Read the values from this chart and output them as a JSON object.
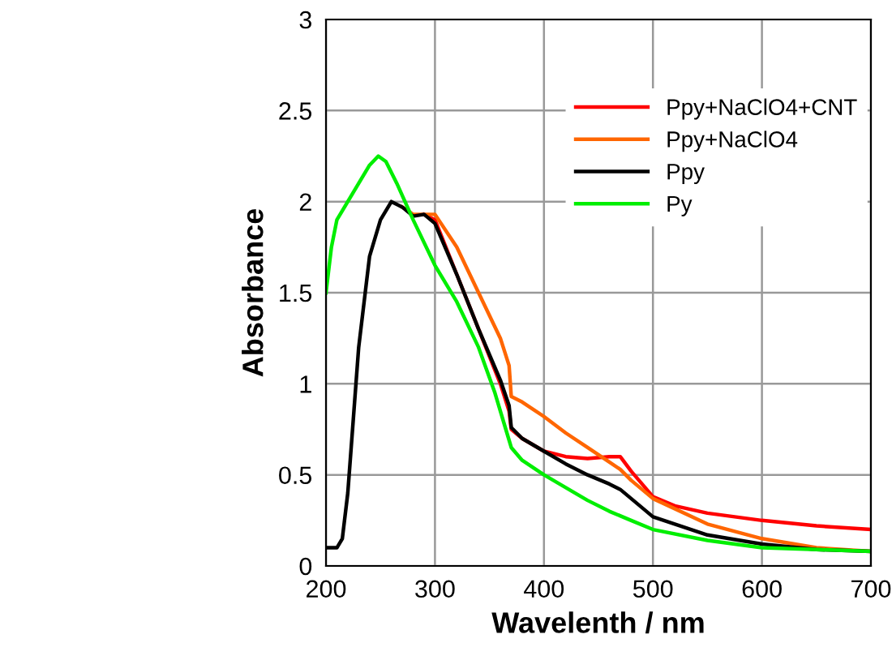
{
  "chart_data": {
    "type": "line",
    "xlabel": "Wavelenth / nm",
    "ylabel": "Absorbance",
    "xlim": [
      200,
      700
    ],
    "ylim": [
      0,
      3
    ],
    "xticks": [
      200,
      300,
      400,
      500,
      600,
      700
    ],
    "yticks": [
      0,
      0.5,
      1,
      1.5,
      2,
      2.5,
      3
    ],
    "grid": true,
    "legend": "top right",
    "series": [
      {
        "name": "Ppy+NaClO4+CNT",
        "color": "#ff0000",
        "x": [
          290,
          300,
          320,
          340,
          360,
          368,
          370,
          380,
          400,
          420,
          440,
          460,
          470,
          480,
          490,
          500,
          520,
          550,
          600,
          650,
          700
        ],
        "values": [
          1.93,
          1.9,
          1.6,
          1.3,
          1.0,
          0.85,
          0.75,
          0.7,
          0.63,
          0.6,
          0.59,
          0.6,
          0.6,
          0.52,
          0.45,
          0.38,
          0.33,
          0.29,
          0.25,
          0.22,
          0.2
        ]
      },
      {
        "name": "Ppy+NaClO4",
        "color": "#ff6600",
        "x": [
          270,
          280,
          300,
          320,
          340,
          360,
          368,
          370,
          380,
          400,
          420,
          440,
          460,
          470,
          480,
          500,
          550,
          600,
          650,
          700
        ],
        "values": [
          1.97,
          1.93,
          1.93,
          1.75,
          1.5,
          1.25,
          1.1,
          0.93,
          0.9,
          0.82,
          0.73,
          0.65,
          0.57,
          0.53,
          0.47,
          0.37,
          0.23,
          0.15,
          0.1,
          0.08
        ]
      },
      {
        "name": "Ppy",
        "color": "#000000",
        "x": [
          200,
          210,
          215,
          220,
          230,
          240,
          250,
          260,
          270,
          280,
          290,
          300,
          320,
          340,
          360,
          368,
          370,
          380,
          400,
          420,
          440,
          460,
          470,
          480,
          500,
          550,
          600,
          650,
          700
        ],
        "values": [
          0.1,
          0.1,
          0.15,
          0.4,
          1.2,
          1.7,
          1.9,
          2.0,
          1.97,
          1.92,
          1.93,
          1.88,
          1.6,
          1.3,
          1.02,
          0.88,
          0.76,
          0.7,
          0.63,
          0.56,
          0.5,
          0.45,
          0.42,
          0.37,
          0.27,
          0.17,
          0.12,
          0.09,
          0.08
        ]
      },
      {
        "name": "Py",
        "color": "#00ee00",
        "x": [
          200,
          205,
          210,
          220,
          230,
          240,
          248,
          255,
          265,
          280,
          300,
          320,
          340,
          355,
          365,
          370,
          380,
          400,
          420,
          440,
          460,
          480,
          500,
          550,
          600,
          650,
          700
        ],
        "values": [
          1.5,
          1.75,
          1.9,
          2.0,
          2.1,
          2.2,
          2.25,
          2.22,
          2.1,
          1.9,
          1.65,
          1.45,
          1.2,
          0.95,
          0.75,
          0.65,
          0.58,
          0.5,
          0.43,
          0.36,
          0.3,
          0.25,
          0.2,
          0.14,
          0.1,
          0.09,
          0.08
        ]
      }
    ]
  }
}
